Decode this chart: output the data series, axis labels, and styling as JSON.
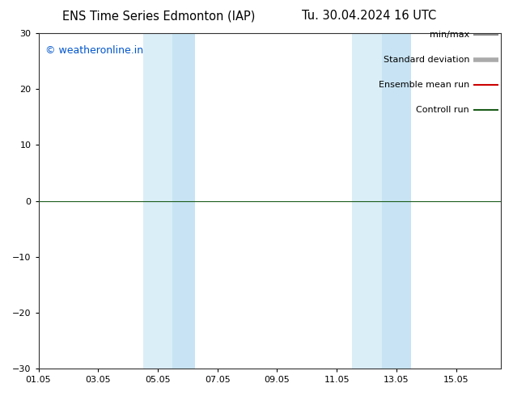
{
  "title_left": "ENS Time Series Edmonton (IAP)",
  "title_right": "Tu. 30.04.2024 16 UTC",
  "ylim": [
    -30,
    30
  ],
  "yticks": [
    -30,
    -20,
    -10,
    0,
    10,
    20,
    30
  ],
  "xtick_labels": [
    "01.05",
    "03.05",
    "05.05",
    "07.05",
    "09.05",
    "11.05",
    "13.05",
    "15.05"
  ],
  "xtick_positions": [
    0,
    2,
    4,
    6,
    8,
    10,
    12,
    14
  ],
  "xlim": [
    0,
    15.5
  ],
  "watermark": "© weatheronline.in",
  "watermark_color": "#0055cc",
  "bg_color": "#ffffff",
  "shade_bands": [
    {
      "x_start": 3.5,
      "x_end": 4.5,
      "color": "#daeef8"
    },
    {
      "x_start": 4.5,
      "x_end": 5.25,
      "color": "#c8e4f4"
    },
    {
      "x_start": 10.5,
      "x_end": 11.5,
      "color": "#daeef8"
    },
    {
      "x_start": 11.5,
      "x_end": 12.5,
      "color": "#c8e4f4"
    }
  ],
  "control_run_color": "#1a5c1a",
  "ensemble_mean_color": "#cc0000",
  "title_fontsize": 10.5,
  "tick_fontsize": 8,
  "legend_fontsize": 8,
  "watermark_fontsize": 9,
  "legend_entries": [
    {
      "label": "min/max",
      "color": "#888888",
      "lw": 1.5
    },
    {
      "label": "Standard deviation",
      "color": "#aaaaaa",
      "lw": 4
    },
    {
      "label": "Ensemble mean run",
      "color": "#cc0000",
      "lw": 1.5
    },
    {
      "label": "Controll run",
      "color": "#1a5c1a",
      "lw": 1.5
    }
  ]
}
